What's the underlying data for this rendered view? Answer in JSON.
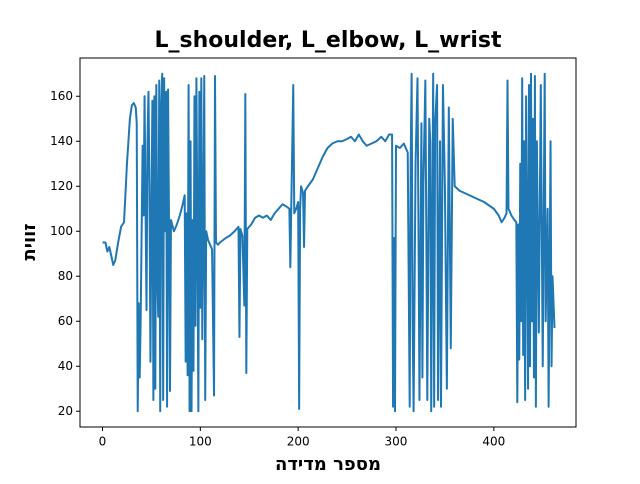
{
  "chart_data": {
    "type": "line",
    "title": "L_shoulder, L_elbow, L_wrist",
    "x_label": "מספר מדידה",
    "y_label": "זווית",
    "color": "#1f77b4",
    "xlim": [
      -23,
      484
    ],
    "ylim": [
      13,
      177
    ],
    "xticks": [
      0,
      100,
      200,
      300,
      400
    ],
    "yticks": [
      20,
      40,
      60,
      80,
      100,
      120,
      140,
      160
    ],
    "x": [
      0,
      3,
      5,
      7,
      9,
      11,
      13,
      16,
      19,
      22,
      25,
      28,
      30,
      32,
      34,
      35,
      36,
      37,
      38,
      39,
      41,
      42,
      43,
      44,
      45,
      46,
      47,
      48,
      49,
      50,
      51,
      52,
      53,
      54,
      55,
      56,
      57,
      58,
      59,
      60,
      61,
      62,
      63,
      64,
      65,
      66,
      67,
      68,
      69,
      70,
      73,
      76,
      79,
      82,
      84,
      85,
      86,
      87,
      88,
      89,
      90,
      91,
      92,
      93,
      94,
      95,
      96,
      97,
      98,
      99,
      100,
      101,
      102,
      103,
      104,
      105,
      106,
      108,
      110,
      112,
      114,
      115,
      116,
      118,
      120,
      123,
      126,
      130,
      135,
      139,
      140,
      141,
      143,
      145,
      146,
      147,
      148,
      152,
      156,
      160,
      164,
      168,
      172,
      176,
      180,
      184,
      188,
      191,
      192,
      193,
      195,
      196,
      198,
      200,
      201,
      202,
      203,
      205,
      206,
      207,
      210,
      215,
      220,
      225,
      230,
      235,
      240,
      245,
      250,
      254,
      258,
      262,
      266,
      270,
      275,
      280,
      285,
      289,
      293,
      296,
      297,
      298,
      299,
      300,
      304,
      308,
      312,
      314,
      315,
      316,
      317,
      318,
      320,
      322,
      323,
      324,
      326,
      327,
      328,
      330,
      331,
      332,
      334,
      335,
      336,
      338,
      339,
      340,
      342,
      343,
      345,
      346,
      348,
      350,
      352,
      354,
      356,
      358,
      360,
      365,
      370,
      380,
      390,
      400,
      405,
      408,
      411,
      413,
      414,
      415,
      418,
      421,
      423,
      424,
      425,
      426,
      427,
      428,
      429,
      430,
      431,
      432,
      433,
      434,
      435,
      436,
      437,
      438,
      439,
      440,
      441,
      442,
      443,
      444,
      446,
      448,
      450,
      452,
      453,
      455,
      456,
      458,
      459,
      460,
      462
    ],
    "values": [
      95,
      95,
      91,
      93,
      89,
      85,
      87,
      95,
      102,
      104,
      130,
      150,
      156,
      157,
      155,
      148,
      20,
      68,
      35,
      60,
      138,
      107,
      160,
      110,
      65,
      140,
      162,
      120,
      42,
      108,
      158,
      25,
      160,
      30,
      165,
      80,
      62,
      167,
      20,
      155,
      170,
      25,
      168,
      100,
      162,
      22,
      163,
      103,
      29,
      105,
      100,
      103,
      107,
      112,
      116,
      42,
      108,
      36,
      165,
      20,
      140,
      20,
      105,
      38,
      160,
      58,
      168,
      100,
      20,
      162,
      66,
      168,
      52,
      100,
      169,
      25,
      100,
      96,
      94,
      92,
      27,
      169,
      95,
      94,
      95,
      96,
      97,
      98,
      100,
      102,
      53,
      101,
      98,
      67,
      161,
      37,
      101,
      103,
      106,
      107,
      106,
      107,
      105,
      108,
      110,
      112,
      111,
      110,
      84,
      112,
      165,
      108,
      110,
      113,
      21,
      110,
      120,
      117,
      93,
      118,
      120,
      123,
      128,
      133,
      137,
      139,
      140,
      140,
      141,
      142,
      140,
      143,
      140,
      138,
      139,
      140,
      142,
      140,
      143,
      143,
      22,
      97,
      20,
      138,
      137,
      139,
      135,
      22,
      130,
      170,
      60,
      20,
      130,
      168,
      100,
      25,
      148,
      35,
      120,
      167,
      100,
      25,
      150,
      140,
      20,
      170,
      22,
      148,
      165,
      25,
      140,
      22,
      165,
      120,
      30,
      155,
      48,
      150,
      120,
      118,
      117,
      115,
      113,
      110,
      107,
      104,
      106,
      108,
      167,
      110,
      107,
      105,
      104,
      24,
      103,
      43,
      130,
      60,
      168,
      45,
      140,
      25,
      160,
      100,
      30,
      165,
      40,
      170,
      60,
      150,
      35,
      169,
      22,
      140,
      55,
      165,
      40,
      170,
      60,
      110,
      22,
      140,
      40,
      80,
      57
    ]
  }
}
